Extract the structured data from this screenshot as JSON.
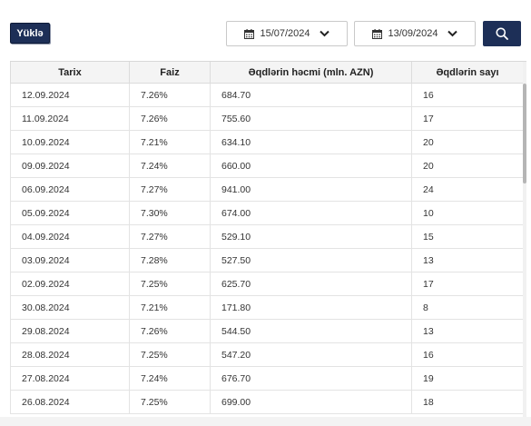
{
  "toolbar": {
    "upload_label": "Yüklə",
    "date_from": "15/07/2024",
    "date_to": "13/09/2024",
    "search_icon": "search-icon",
    "calendar_icon": "calendar-icon",
    "chevron_icon": "chevron-down-icon"
  },
  "colors": {
    "accent": "#1d2f57",
    "header_bg": "#f4f4f4",
    "border": "#dcdcdc"
  },
  "table": {
    "columns": [
      "Tarix",
      "Faiz",
      "Əqdlərin həcmi (mln. AZN)",
      "Əqdlərin sayı"
    ],
    "rows": [
      [
        "12.09.2024",
        "7.26%",
        "684.70",
        "16"
      ],
      [
        "11.09.2024",
        "7.26%",
        "755.60",
        "17"
      ],
      [
        "10.09.2024",
        "7.21%",
        "634.10",
        "20"
      ],
      [
        "09.09.2024",
        "7.24%",
        "660.00",
        "20"
      ],
      [
        "06.09.2024",
        "7.27%",
        "941.00",
        "24"
      ],
      [
        "05.09.2024",
        "7.30%",
        "674.00",
        "10"
      ],
      [
        "04.09.2024",
        "7.27%",
        "529.10",
        "15"
      ],
      [
        "03.09.2024",
        "7.28%",
        "527.50",
        "13"
      ],
      [
        "02.09.2024",
        "7.25%",
        "625.70",
        "17"
      ],
      [
        "30.08.2024",
        "7.21%",
        "171.80",
        "8"
      ],
      [
        "29.08.2024",
        "7.26%",
        "544.50",
        "13"
      ],
      [
        "28.08.2024",
        "7.25%",
        "547.20",
        "16"
      ],
      [
        "27.08.2024",
        "7.24%",
        "676.70",
        "19"
      ],
      [
        "26.08.2024",
        "7.25%",
        "699.00",
        "18"
      ]
    ]
  }
}
